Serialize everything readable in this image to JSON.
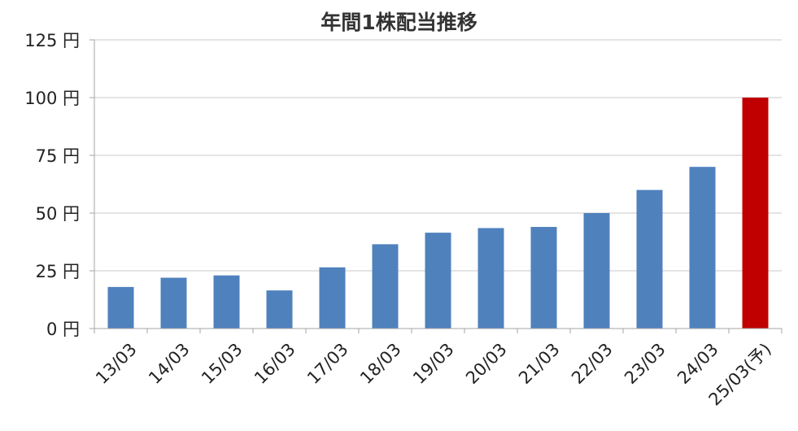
{
  "chart_data": {
    "type": "bar",
    "title": "年間1株配当推移",
    "categories": [
      "13/03",
      "14/03",
      "15/03",
      "16/03",
      "17/03",
      "18/03",
      "19/03",
      "20/03",
      "21/03",
      "22/03",
      "23/03",
      "24/03",
      "25/03(予)"
    ],
    "values": [
      18,
      22,
      23,
      16.5,
      26.5,
      36.5,
      41.5,
      43.5,
      44,
      50,
      60,
      70,
      100
    ],
    "ylim": [
      0,
      125
    ],
    "yticks": [
      0,
      25,
      50,
      75,
      100,
      125
    ],
    "ytick_labels": [
      "0 円",
      "25 円",
      "50 円",
      "75 円",
      "100 円",
      "125 円"
    ],
    "grid": true,
    "colors": {
      "bar": "#4f81bd",
      "highlight": "#c00000",
      "grid": "#c8c8c8",
      "axis": "#a6a6a6"
    },
    "highlight_index": 12
  }
}
